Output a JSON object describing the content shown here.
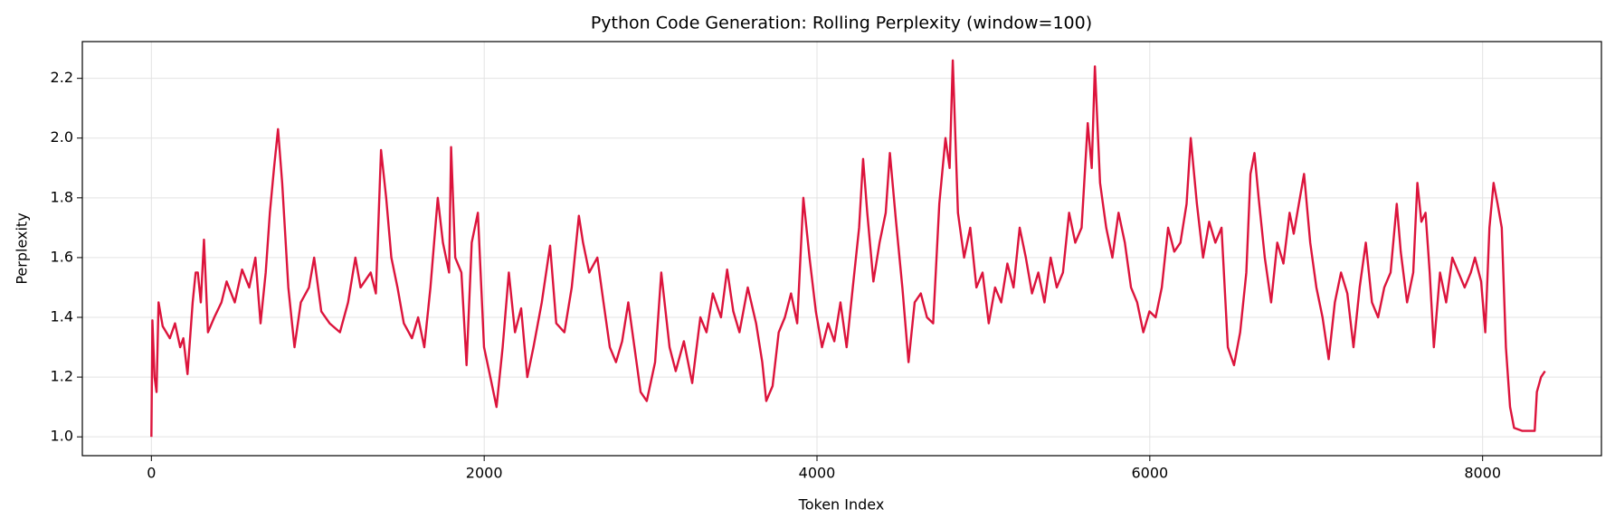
{
  "chart_data": {
    "type": "line",
    "title": "Python Code Generation: Rolling Perplexity (window=100)",
    "x_label": "Token Index",
    "y_label": "Perplexity",
    "color": "#dc143c",
    "grid": true,
    "xlim": [
      -415,
      8714
    ],
    "ylim": [
      0.937,
      2.323
    ],
    "xticks": [
      0,
      2000,
      4000,
      6000,
      8000
    ],
    "yticks": [
      {
        "value": 1,
        "label": "1.0"
      },
      1.2,
      1.4,
      1.6,
      1.8,
      {
        "value": 2,
        "label": "2.0"
      },
      2.2
    ],
    "x": [
      0,
      6,
      19,
      31,
      43,
      68,
      111,
      142,
      173,
      192,
      217,
      248,
      266,
      279,
      297,
      316,
      340,
      378,
      421,
      452,
      501,
      545,
      588,
      625,
      656,
      687,
      712,
      737,
      761,
      786,
      823,
      860,
      898,
      947,
      978,
      1021,
      1071,
      1133,
      1182,
      1226,
      1257,
      1318,
      1349,
      1380,
      1411,
      1442,
      1479,
      1517,
      1566,
      1603,
      1640,
      1677,
      1721,
      1752,
      1789,
      1801,
      1826,
      1863,
      1894,
      1925,
      1962,
      1999,
      2037,
      2074,
      2111,
      2148,
      2185,
      2222,
      2259,
      2296,
      2346,
      2396,
      2433,
      2482,
      2526,
      2569,
      2594,
      2631,
      2680,
      2717,
      2755,
      2792,
      2829,
      2866,
      2903,
      2940,
      2977,
      3027,
      3064,
      3114,
      3151,
      3200,
      3250,
      3299,
      3336,
      3374,
      3423,
      3460,
      3497,
      3534,
      3584,
      3634,
      3671,
      3695,
      3733,
      3770,
      3807,
      3844,
      3881,
      3918,
      3955,
      3993,
      4030,
      4067,
      4104,
      4141,
      4178,
      4215,
      4253,
      4277,
      4302,
      4339,
      4376,
      4413,
      4438,
      4475,
      4513,
      4550,
      4587,
      4624,
      4661,
      4698,
      4735,
      4772,
      4797,
      4816,
      4847,
      4884,
      4921,
      4958,
      4995,
      5032,
      5070,
      5107,
      5144,
      5181,
      5218,
      5255,
      5292,
      5330,
      5367,
      5404,
      5441,
      5478,
      5515,
      5552,
      5590,
      5627,
      5651,
      5670,
      5701,
      5738,
      5775,
      5812,
      5850,
      5887,
      5924,
      5961,
      5998,
      6035,
      6072,
      6110,
      6147,
      6184,
      6221,
      6246,
      6283,
      6320,
      6357,
      6394,
      6431,
      6469,
      6506,
      6543,
      6580,
      6605,
      6629,
      6654,
      6691,
      6729,
      6766,
      6803,
      6840,
      6865,
      6902,
      6927,
      6964,
      7001,
      7038,
      7075,
      7112,
      7149,
      7187,
      7224,
      7261,
      7298,
      7335,
      7372,
      7409,
      7447,
      7484,
      7508,
      7546,
      7583,
      7608,
      7632,
      7657,
      7682,
      7707,
      7744,
      7781,
      7818,
      7855,
      7892,
      7929,
      7954,
      7991,
      8016,
      8041,
      8066,
      8090,
      8115,
      8140,
      8165,
      8189,
      8239,
      8288,
      8313,
      8326,
      8351,
      8375
    ],
    "values": [
      1.0,
      1.39,
      1.2,
      1.15,
      1.45,
      1.37,
      1.33,
      1.38,
      1.3,
      1.33,
      1.21,
      1.45,
      1.55,
      1.55,
      1.45,
      1.66,
      1.35,
      1.4,
      1.45,
      1.52,
      1.45,
      1.56,
      1.5,
      1.6,
      1.38,
      1.55,
      1.75,
      1.9,
      2.03,
      1.85,
      1.5,
      1.3,
      1.45,
      1.5,
      1.6,
      1.42,
      1.38,
      1.35,
      1.45,
      1.6,
      1.5,
      1.55,
      1.48,
      1.96,
      1.8,
      1.6,
      1.5,
      1.38,
      1.33,
      1.4,
      1.3,
      1.5,
      1.8,
      1.65,
      1.55,
      1.97,
      1.6,
      1.55,
      1.24,
      1.65,
      1.75,
      1.3,
      1.2,
      1.1,
      1.3,
      1.55,
      1.35,
      1.43,
      1.2,
      1.3,
      1.45,
      1.64,
      1.38,
      1.35,
      1.5,
      1.74,
      1.65,
      1.55,
      1.6,
      1.45,
      1.3,
      1.25,
      1.32,
      1.45,
      1.3,
      1.15,
      1.12,
      1.25,
      1.55,
      1.3,
      1.22,
      1.32,
      1.18,
      1.4,
      1.35,
      1.48,
      1.4,
      1.56,
      1.42,
      1.35,
      1.5,
      1.38,
      1.25,
      1.12,
      1.17,
      1.35,
      1.4,
      1.48,
      1.38,
      1.8,
      1.6,
      1.42,
      1.3,
      1.38,
      1.32,
      1.45,
      1.3,
      1.5,
      1.7,
      1.93,
      1.75,
      1.52,
      1.65,
      1.75,
      1.95,
      1.72,
      1.5,
      1.25,
      1.45,
      1.48,
      1.4,
      1.38,
      1.78,
      2.0,
      1.9,
      2.26,
      1.75,
      1.6,
      1.7,
      1.5,
      1.55,
      1.38,
      1.5,
      1.45,
      1.58,
      1.5,
      1.7,
      1.6,
      1.48,
      1.55,
      1.45,
      1.6,
      1.5,
      1.55,
      1.75,
      1.65,
      1.7,
      2.05,
      1.9,
      2.24,
      1.85,
      1.7,
      1.6,
      1.75,
      1.65,
      1.5,
      1.45,
      1.35,
      1.42,
      1.4,
      1.5,
      1.7,
      1.62,
      1.65,
      1.78,
      2.0,
      1.78,
      1.6,
      1.72,
      1.65,
      1.7,
      1.3,
      1.24,
      1.35,
      1.55,
      1.88,
      1.95,
      1.8,
      1.6,
      1.45,
      1.65,
      1.58,
      1.75,
      1.68,
      1.8,
      1.88,
      1.65,
      1.5,
      1.4,
      1.26,
      1.45,
      1.55,
      1.48,
      1.3,
      1.5,
      1.65,
      1.45,
      1.4,
      1.5,
      1.55,
      1.78,
      1.62,
      1.45,
      1.55,
      1.85,
      1.72,
      1.75,
      1.55,
      1.3,
      1.55,
      1.45,
      1.6,
      1.55,
      1.5,
      1.55,
      1.6,
      1.52,
      1.35,
      1.7,
      1.85,
      1.78,
      1.7,
      1.3,
      1.1,
      1.03,
      1.02,
      1.02,
      1.02,
      1.15,
      1.2,
      1.22
    ]
  }
}
